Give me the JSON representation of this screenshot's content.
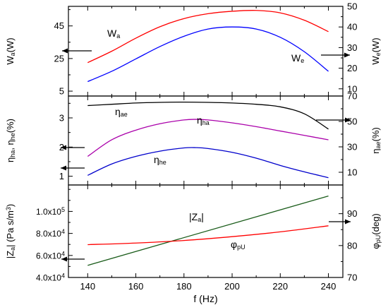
{
  "figure": {
    "xlabel": "f (Hz)",
    "x_ticks": [
      "140",
      "160",
      "180",
      "200",
      "220",
      "240"
    ]
  },
  "chart_data": [
    {
      "type": "line",
      "panel": "top",
      "xlim": [
        132,
        246
      ],
      "left_axis": {
        "label_main": "W",
        "label_sub": "a",
        "label_unit": "(W)",
        "ylim": [
          2,
          57
        ],
        "ticks": [
          "5",
          "25",
          "45"
        ],
        "tick_values": [
          5,
          25,
          45
        ]
      },
      "right_axis": {
        "label_main": "W",
        "label_sub": "e",
        "label_unit": "(W)",
        "ylim": [
          6.5,
          50
        ],
        "ticks": [
          "10",
          "20",
          "30",
          "40",
          "50"
        ],
        "tick_values": [
          10,
          20,
          30,
          40,
          50
        ]
      },
      "series": [
        {
          "name_main": "W",
          "name_sub": "a",
          "axis": "left",
          "color": "#ff0000",
          "x": [
            140,
            150,
            160,
            170,
            180,
            190,
            200,
            210,
            220,
            230,
            240
          ],
          "y": [
            22.5,
            29.5,
            37.5,
            44.5,
            49.5,
            52.5,
            54.0,
            54.5,
            53.0,
            48.5,
            41.5
          ]
        },
        {
          "name_main": "W",
          "name_sub": "e",
          "axis": "right",
          "color": "#0000ff",
          "x": [
            140,
            150,
            160,
            170,
            180,
            190,
            200,
            210,
            220,
            230,
            240
          ],
          "y": [
            13.5,
            18.5,
            24.5,
            30.5,
            35.5,
            39.0,
            40.0,
            39.0,
            35.0,
            28.0,
            18.5
          ]
        }
      ]
    },
    {
      "type": "line",
      "panel": "middle",
      "xlim": [
        132,
        246
      ],
      "left_axis": {
        "label_main": "η",
        "label_sub": "ha",
        "label_mid": ", η",
        "label_sub2": "he",
        "label_unit": "(%)",
        "ylim": [
          0.7,
          3.75
        ],
        "ticks": [
          "1",
          "2",
          "3"
        ],
        "tick_values": [
          1,
          2,
          3
        ]
      },
      "right_axis": {
        "label_main": "η",
        "label_sub": "ae",
        "label_unit": "(%)",
        "ylim": [
          0,
          70
        ],
        "ticks": [
          "10",
          "30",
          "50",
          "70"
        ],
        "tick_values": [
          10,
          30,
          50,
          70
        ]
      },
      "series": [
        {
          "name_main": "η",
          "name_sub": "ae",
          "axis": "right",
          "color": "#000000",
          "x": [
            140,
            150,
            160,
            170,
            180,
            190,
            200,
            210,
            220,
            230,
            240
          ],
          "y": [
            62.5,
            63.5,
            64.5,
            65.0,
            65.2,
            65.0,
            64.5,
            63.5,
            61.5,
            56.0,
            44.0
          ]
        },
        {
          "name_main": "η",
          "name_sub": "ha",
          "axis": "left",
          "color": "#aa00aa",
          "x": [
            140,
            150,
            160,
            170,
            180,
            185,
            190,
            200,
            210,
            220,
            230,
            240
          ],
          "y": [
            1.68,
            2.25,
            2.58,
            2.8,
            2.93,
            2.95,
            2.93,
            2.83,
            2.7,
            2.55,
            2.4,
            2.25
          ]
        },
        {
          "name_main": "η",
          "name_sub": "he",
          "axis": "left",
          "color": "#0000cc",
          "x": [
            140,
            150,
            160,
            170,
            180,
            185,
            190,
            200,
            210,
            220,
            230,
            240
          ],
          "y": [
            1.03,
            1.42,
            1.68,
            1.86,
            1.97,
            1.98,
            1.95,
            1.82,
            1.62,
            1.37,
            1.15,
            0.95
          ]
        }
      ]
    },
    {
      "type": "line",
      "panel": "bottom",
      "xlim": [
        132,
        246
      ],
      "left_axis": {
        "label_main": "|Z",
        "label_sub": "a",
        "label_unit": "| (Pa s/m",
        "label_sup": "3",
        "label_end": ")",
        "ylim": [
          40000,
          124000
        ],
        "ticks": [
          {
            "mant": "4.0x10",
            "exp": "4",
            "value": 40000
          },
          {
            "mant": "6.0x10",
            "exp": "4",
            "value": 60000
          },
          {
            "mant": "8.0x10",
            "exp": "4",
            "value": 80000
          },
          {
            "mant": "1.0x10",
            "exp": "5",
            "value": 100000
          }
        ]
      },
      "right_axis": {
        "label_main": "φ",
        "label_sub": "pU",
        "label_unit": "(deg)",
        "ylim": [
          70,
          99
        ],
        "ticks": [
          "70",
          "80",
          "90"
        ],
        "tick_values": [
          70,
          80,
          90
        ]
      },
      "series": [
        {
          "name_main": "|Z",
          "name_sub": "a",
          "name_end": "|",
          "axis": "left",
          "color": "#1a5c1a",
          "x": [
            140,
            240
          ],
          "y": [
            51000,
            114000
          ]
        },
        {
          "name_main": "φ",
          "name_sub": "pU",
          "axis": "right",
          "color": "#ff0000",
          "x": [
            140,
            160,
            180,
            200,
            220,
            240
          ],
          "y": [
            80.3,
            80.8,
            81.6,
            82.8,
            84.3,
            86.2
          ]
        }
      ]
    }
  ]
}
